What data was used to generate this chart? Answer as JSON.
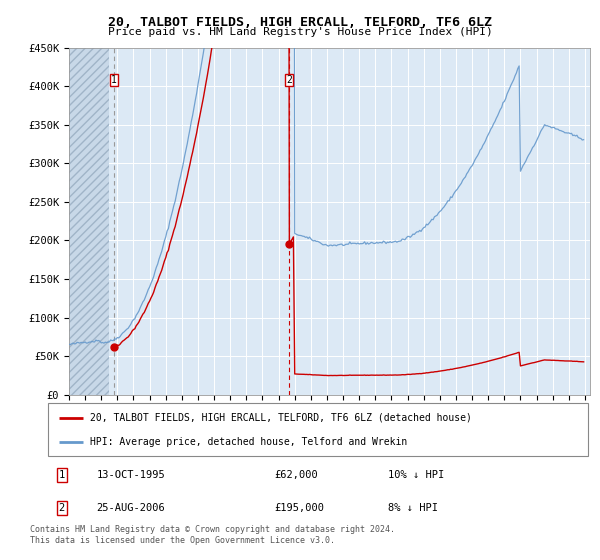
{
  "title": "20, TALBOT FIELDS, HIGH ERCALL, TELFORD, TF6 6LZ",
  "subtitle": "Price paid vs. HM Land Registry's House Price Index (HPI)",
  "legend_line1": "20, TALBOT FIELDS, HIGH ERCALL, TELFORD, TF6 6LZ (detached house)",
  "legend_line2": "HPI: Average price, detached house, Telford and Wrekin",
  "sale1_date": "13-OCT-1995",
  "sale1_price": "£62,000",
  "sale1_hpi": "10% ↓ HPI",
  "sale2_date": "25-AUG-2006",
  "sale2_price": "£195,000",
  "sale2_hpi": "8% ↓ HPI",
  "footer": "Contains HM Land Registry data © Crown copyright and database right 2024.\nThis data is licensed under the Open Government Licence v3.0.",
  "sale_color": "#cc0000",
  "hpi_color": "#6699cc",
  "ylim": [
    0,
    450000
  ],
  "yticks": [
    0,
    50000,
    100000,
    150000,
    200000,
    250000,
    300000,
    350000,
    400000,
    450000
  ],
  "ytick_labels": [
    "£0",
    "£50K",
    "£100K",
    "£150K",
    "£200K",
    "£250K",
    "£300K",
    "£350K",
    "£400K",
    "£450K"
  ],
  "plot_bg_color": "#dce9f5",
  "hatch_bg_color": "#c8d8e8",
  "grid_color": "#c8d8e8",
  "sale1_x": 1995.79,
  "sale1_y": 62000,
  "sale2_x": 2006.65,
  "sale2_y": 195000,
  "xmin": 1993.0,
  "xmax": 2025.3,
  "hatch_end": 1995.5
}
